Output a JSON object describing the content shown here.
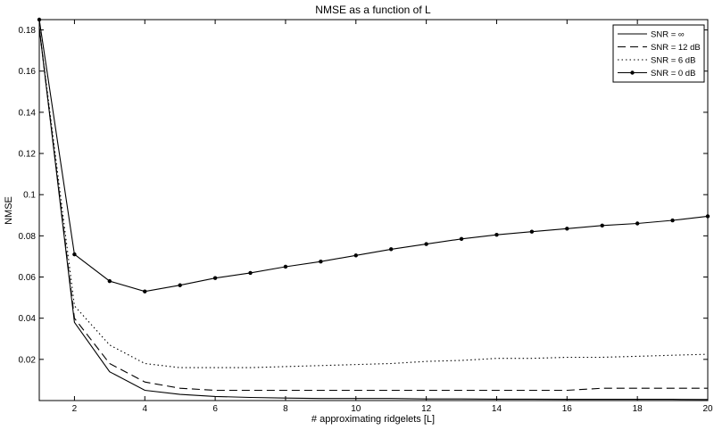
{
  "chart_data": {
    "type": "line",
    "title": "NMSE as a function of L",
    "xlabel": "# approximating ridgelets [L]",
    "ylabel": "NMSE",
    "xlim": [
      1,
      20
    ],
    "ylim": [
      0,
      0.185
    ],
    "xticks": [
      2,
      4,
      6,
      8,
      10,
      12,
      14,
      16,
      18,
      20
    ],
    "xtick_labels": [
      "2",
      "4",
      "6",
      "8",
      "10",
      "12",
      "14",
      "16",
      "18",
      "20"
    ],
    "yticks": [
      0.02,
      0.04,
      0.06,
      0.08,
      0.1,
      0.12,
      0.14,
      0.16,
      0.18
    ],
    "ytick_labels": [
      "0.02",
      "0.04",
      "0.06",
      "0.08",
      "0.1",
      "0.12",
      "0.14",
      "0.16",
      "0.18"
    ],
    "grid": false,
    "legend_position": "top-right",
    "x": [
      1,
      2,
      3,
      4,
      5,
      6,
      7,
      8,
      9,
      10,
      11,
      12,
      13,
      14,
      15,
      16,
      17,
      18,
      19,
      20
    ],
    "series": [
      {
        "name": "SNR = ∞",
        "style": "solid",
        "marker": "none",
        "values": [
          0.181,
          0.038,
          0.014,
          0.005,
          0.003,
          0.002,
          0.0015,
          0.0012,
          0.001,
          0.001,
          0.001,
          0.0008,
          0.0008,
          0.0007,
          0.0007,
          0.0006,
          0.0006,
          0.0006,
          0.0006,
          0.0005
        ]
      },
      {
        "name": "SNR = 12 dB",
        "style": "dashed",
        "marker": "none",
        "values": [
          0.181,
          0.04,
          0.018,
          0.009,
          0.006,
          0.005,
          0.005,
          0.005,
          0.005,
          0.005,
          0.005,
          0.005,
          0.005,
          0.005,
          0.005,
          0.005,
          0.006,
          0.006,
          0.006,
          0.006
        ]
      },
      {
        "name": "SNR = 6 dB",
        "style": "dotted",
        "marker": "none",
        "values": [
          0.181,
          0.046,
          0.027,
          0.018,
          0.016,
          0.016,
          0.016,
          0.0165,
          0.017,
          0.0175,
          0.018,
          0.019,
          0.0195,
          0.0205,
          0.0205,
          0.021,
          0.021,
          0.0215,
          0.022,
          0.0225
        ]
      },
      {
        "name": "SNR = 0 dB",
        "style": "solid",
        "marker": "dot",
        "values": [
          0.185,
          0.071,
          0.058,
          0.053,
          0.056,
          0.0595,
          0.062,
          0.065,
          0.0675,
          0.0705,
          0.0735,
          0.076,
          0.0785,
          0.0805,
          0.082,
          0.0835,
          0.085,
          0.086,
          0.0875,
          0.0895
        ]
      }
    ]
  }
}
